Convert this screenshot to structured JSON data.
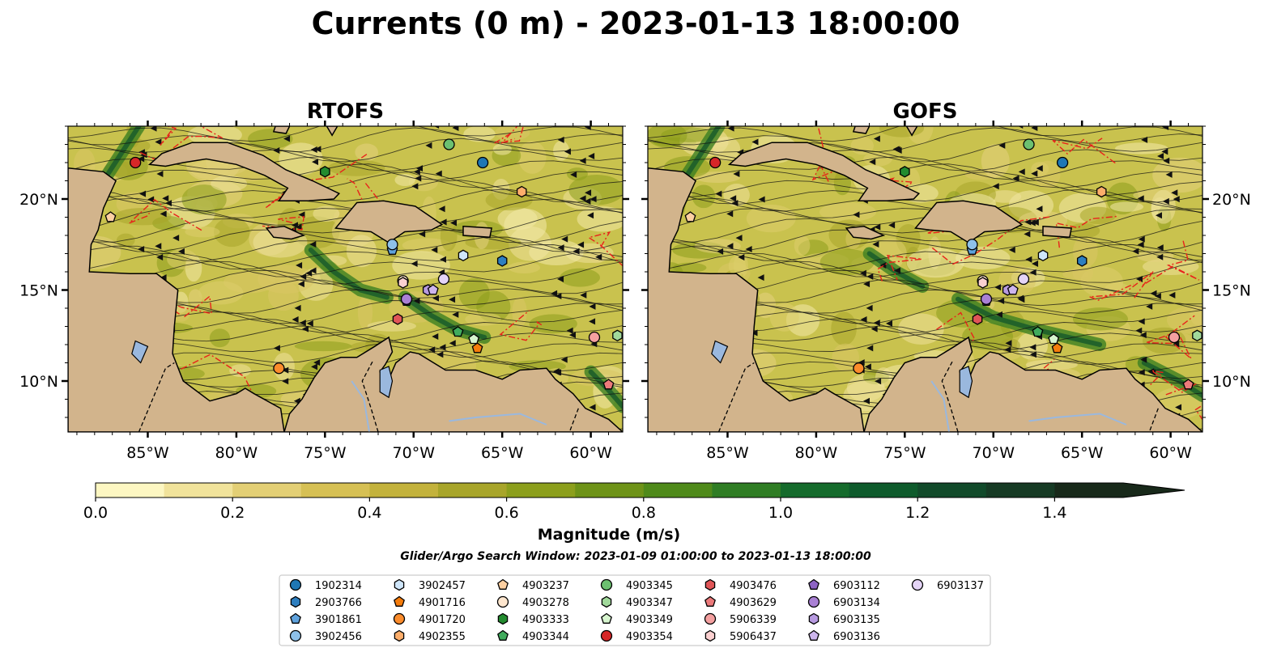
{
  "figure": {
    "title": "Currents (0 m) - 2023-01-13 18:00:00"
  },
  "panels": [
    {
      "name": "RTOFS",
      "title": "RTOFS"
    },
    {
      "name": "GOFS",
      "title": "GOFS"
    }
  ],
  "colorbar": {
    "label": "Magnitude (m/s)",
    "tick_labels": [
      "0.0",
      "0.2",
      "0.4",
      "0.6",
      "0.8",
      "1.0",
      "1.2",
      "1.4"
    ],
    "colors": [
      "#fdf7c2",
      "#f1e39b",
      "#e3cf75",
      "#d6c054",
      "#c3b23c",
      "#a8a52a",
      "#8c9f1c",
      "#6e9318",
      "#4f8a1a",
      "#2f7d24",
      "#156b2c",
      "#0e5b2c",
      "#114a2a",
      "#163a24",
      "#18291a"
    ]
  },
  "search_window": "Glider/Argo Search Window: 2023-01-09 01:00:00 to 2023-01-13 18:00:00",
  "legend": [
    {
      "id": "1902314",
      "color": "#1f77b4",
      "marker": "circle"
    },
    {
      "id": "2903766",
      "color": "#2e7fc0",
      "marker": "hexagon"
    },
    {
      "id": "3901861",
      "color": "#5fa2dd",
      "marker": "pentagon"
    },
    {
      "id": "3902456",
      "color": "#8ec1ea",
      "marker": "circle"
    },
    {
      "id": "3902457",
      "color": "#cfe6fa",
      "marker": "hexagon"
    },
    {
      "id": "4901716",
      "color": "#f57c0b",
      "marker": "pentagon"
    },
    {
      "id": "4901720",
      "color": "#fb8c2c",
      "marker": "circle"
    },
    {
      "id": "4902355",
      "color": "#fdae6b",
      "marker": "hexagon"
    },
    {
      "id": "4903237",
      "color": "#fdd0a2",
      "marker": "pentagon"
    },
    {
      "id": "4903278",
      "color": "#fee6ce",
      "marker": "circle"
    },
    {
      "id": "4903333",
      "color": "#238b2f",
      "marker": "hexagon"
    },
    {
      "id": "4903344",
      "color": "#41ab5d",
      "marker": "pentagon"
    },
    {
      "id": "4903345",
      "color": "#6cc070",
      "marker": "circle"
    },
    {
      "id": "4903347",
      "color": "#a1d99b",
      "marker": "hexagon"
    },
    {
      "id": "4903349",
      "color": "#d7f5cf",
      "marker": "pentagon"
    },
    {
      "id": "4903354",
      "color": "#d62728",
      "marker": "circle"
    },
    {
      "id": "4903476",
      "color": "#e05557",
      "marker": "hexagon"
    },
    {
      "id": "4903629",
      "color": "#ec7a7b",
      "marker": "pentagon"
    },
    {
      "id": "5906339",
      "color": "#f4a0a0",
      "marker": "circle"
    },
    {
      "id": "5906437",
      "color": "#fbd0d0",
      "marker": "hexagon"
    },
    {
      "id": "6903112",
      "color": "#8d63c4",
      "marker": "pentagon"
    },
    {
      "id": "6903134",
      "color": "#a980d4",
      "marker": "circle"
    },
    {
      "id": "6903135",
      "color": "#b79ae0",
      "marker": "hexagon"
    },
    {
      "id": "6903136",
      "color": "#cdb5ec",
      "marker": "pentagon"
    },
    {
      "id": "6903137",
      "color": "#e4d4f6",
      "marker": "circle"
    }
  ],
  "chart_data": [
    {
      "type": "map",
      "title": "RTOFS",
      "lon_range": [
        -89.5,
        -58.2
      ],
      "lat_range": [
        7.2,
        24.0
      ],
      "x_tick_labels": [
        "85°W",
        "80°W",
        "75°W",
        "70°W",
        "65°W",
        "60°W"
      ],
      "x_ticks": [
        -85,
        -80,
        -75,
        -70,
        -65,
        -60
      ],
      "y_tick_labels": [
        "10°N",
        "15°N",
        "20°N"
      ],
      "y_ticks": [
        10,
        15,
        20
      ],
      "floats": [
        {
          "id": "1902314",
          "lon": -66.1,
          "lat": 22.0
        },
        {
          "id": "2903766",
          "lon": -65.0,
          "lat": 16.6
        },
        {
          "id": "3901861",
          "lon": -71.2,
          "lat": 17.2
        },
        {
          "id": "3902456",
          "lon": -71.2,
          "lat": 17.5
        },
        {
          "id": "3902457",
          "lon": -67.2,
          "lat": 16.9
        },
        {
          "id": "4901716",
          "lon": -66.4,
          "lat": 11.8
        },
        {
          "id": "4901720",
          "lon": -77.6,
          "lat": 10.7
        },
        {
          "id": "4902355",
          "lon": -63.9,
          "lat": 20.4
        },
        {
          "id": "4903237",
          "lon": -87.1,
          "lat": 19.0
        },
        {
          "id": "4903278",
          "lon": -70.6,
          "lat": 15.5
        },
        {
          "id": "4903333",
          "lon": -75.0,
          "lat": 21.5
        },
        {
          "id": "4903344",
          "lon": -67.5,
          "lat": 12.7
        },
        {
          "id": "4903345",
          "lon": -68.0,
          "lat": 23.0
        },
        {
          "id": "4903347",
          "lon": -58.5,
          "lat": 12.5
        },
        {
          "id": "4903349",
          "lon": -66.6,
          "lat": 12.3
        },
        {
          "id": "4903354",
          "lon": -85.7,
          "lat": 22.0
        },
        {
          "id": "4903476",
          "lon": -70.9,
          "lat": 13.4
        },
        {
          "id": "4903629",
          "lon": -59.0,
          "lat": 9.8
        },
        {
          "id": "5906339",
          "lon": -59.8,
          "lat": 12.4
        },
        {
          "id": "5906437",
          "lon": -70.6,
          "lat": 15.4
        },
        {
          "id": "6903112",
          "lon": -70.4,
          "lat": 14.4
        },
        {
          "id": "6903134",
          "lon": -70.4,
          "lat": 14.5
        },
        {
          "id": "6903135",
          "lon": -69.2,
          "lat": 15.0
        },
        {
          "id": "6903136",
          "lon": -68.9,
          "lat": 15.0
        },
        {
          "id": "6903137",
          "lon": -68.3,
          "lat": 15.6
        }
      ]
    },
    {
      "type": "map",
      "title": "GOFS",
      "lon_range": [
        -89.5,
        -58.2
      ],
      "lat_range": [
        7.2,
        24.0
      ],
      "x_tick_labels": [
        "85°W",
        "80°W",
        "75°W",
        "70°W",
        "65°W",
        "60°W"
      ],
      "x_ticks": [
        -85,
        -80,
        -75,
        -70,
        -65,
        -60
      ],
      "y_tick_labels": [
        "10°N",
        "15°N",
        "20°N"
      ],
      "y_ticks": [
        10,
        15,
        20
      ],
      "floats": [
        {
          "id": "1902314",
          "lon": -66.1,
          "lat": 22.0
        },
        {
          "id": "2903766",
          "lon": -65.0,
          "lat": 16.6
        },
        {
          "id": "3901861",
          "lon": -71.2,
          "lat": 17.2
        },
        {
          "id": "3902456",
          "lon": -71.2,
          "lat": 17.5
        },
        {
          "id": "3902457",
          "lon": -67.2,
          "lat": 16.9
        },
        {
          "id": "4901716",
          "lon": -66.4,
          "lat": 11.8
        },
        {
          "id": "4901720",
          "lon": -77.6,
          "lat": 10.7
        },
        {
          "id": "4902355",
          "lon": -63.9,
          "lat": 20.4
        },
        {
          "id": "4903237",
          "lon": -87.1,
          "lat": 19.0
        },
        {
          "id": "4903278",
          "lon": -70.6,
          "lat": 15.5
        },
        {
          "id": "4903333",
          "lon": -75.0,
          "lat": 21.5
        },
        {
          "id": "4903344",
          "lon": -67.5,
          "lat": 12.7
        },
        {
          "id": "4903345",
          "lon": -68.0,
          "lat": 23.0
        },
        {
          "id": "4903347",
          "lon": -58.5,
          "lat": 12.5
        },
        {
          "id": "4903349",
          "lon": -66.6,
          "lat": 12.3
        },
        {
          "id": "4903354",
          "lon": -85.7,
          "lat": 22.0
        },
        {
          "id": "4903476",
          "lon": -70.9,
          "lat": 13.4
        },
        {
          "id": "4903629",
          "lon": -59.0,
          "lat": 9.8
        },
        {
          "id": "5906339",
          "lon": -59.8,
          "lat": 12.4
        },
        {
          "id": "5906437",
          "lon": -70.6,
          "lat": 15.4
        },
        {
          "id": "6903112",
          "lon": -70.4,
          "lat": 14.4
        },
        {
          "id": "6903134",
          "lon": -70.4,
          "lat": 14.5
        },
        {
          "id": "6903135",
          "lon": -69.2,
          "lat": 15.0
        },
        {
          "id": "6903136",
          "lon": -68.9,
          "lat": 15.0
        },
        {
          "id": "6903137",
          "lon": -68.3,
          "lat": 15.6
        }
      ]
    }
  ]
}
